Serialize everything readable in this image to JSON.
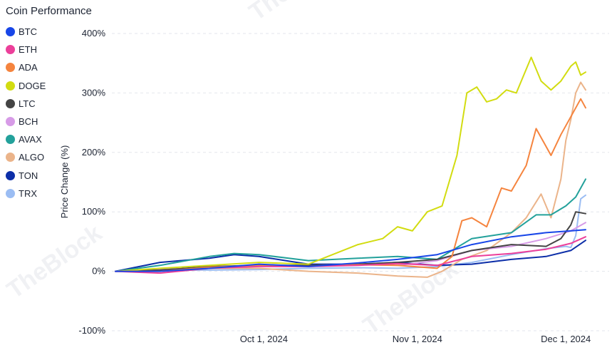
{
  "chart_data": {
    "type": "line",
    "title": "Coin Performance",
    "ylabel": "Price Change (%)",
    "xlabel": "",
    "x_start": "2024-09-01",
    "x_end": "2024-12-05",
    "ylim": [
      -100,
      400
    ],
    "y_ticks": [
      400,
      300,
      200,
      100,
      0,
      -100
    ],
    "y_tick_labels": [
      "400%",
      "300%",
      "200%",
      "100%",
      "0%",
      "-100%"
    ],
    "x_ticks": [
      "2024-10-01",
      "2024-11-01",
      "2024-12-01"
    ],
    "x_tick_labels": [
      "Oct 1, 2024",
      "Nov 1, 2024",
      "Dec 1, 2024"
    ],
    "grid": "horizontal dashed",
    "legend_position": "left",
    "watermark": "TheBlock",
    "series": [
      {
        "name": "BTC",
        "color": "#1846e8",
        "points": [
          [
            "2024-09-01",
            0
          ],
          [
            "2024-09-10",
            0
          ],
          [
            "2024-09-20",
            5
          ],
          [
            "2024-09-30",
            12
          ],
          [
            "2024-10-10",
            8
          ],
          [
            "2024-10-20",
            14
          ],
          [
            "2024-10-28",
            20
          ],
          [
            "2024-11-05",
            28
          ],
          [
            "2024-11-12",
            45
          ],
          [
            "2024-11-20",
            58
          ],
          [
            "2024-11-27",
            65
          ],
          [
            "2024-12-02",
            68
          ],
          [
            "2024-12-05",
            70
          ]
        ]
      },
      {
        "name": "ETH",
        "color": "#ec3f9a",
        "points": [
          [
            "2024-09-01",
            0
          ],
          [
            "2024-09-10",
            -3
          ],
          [
            "2024-09-20",
            5
          ],
          [
            "2024-09-30",
            8
          ],
          [
            "2024-10-10",
            8
          ],
          [
            "2024-10-20",
            10
          ],
          [
            "2024-10-28",
            13
          ],
          [
            "2024-11-05",
            10
          ],
          [
            "2024-11-12",
            25
          ],
          [
            "2024-11-20",
            30
          ],
          [
            "2024-11-27",
            37
          ],
          [
            "2024-12-02",
            47
          ],
          [
            "2024-12-05",
            58
          ]
        ]
      },
      {
        "name": "ADA",
        "color": "#f5843e",
        "points": [
          [
            "2024-09-01",
            0
          ],
          [
            "2024-09-10",
            0
          ],
          [
            "2024-09-20",
            7
          ],
          [
            "2024-09-30",
            10
          ],
          [
            "2024-10-10",
            8
          ],
          [
            "2024-10-20",
            11
          ],
          [
            "2024-10-28",
            10
          ],
          [
            "2024-11-05",
            5
          ],
          [
            "2024-11-08",
            25
          ],
          [
            "2024-11-10",
            85
          ],
          [
            "2024-11-12",
            90
          ],
          [
            "2024-11-15",
            75
          ],
          [
            "2024-11-18",
            140
          ],
          [
            "2024-11-20",
            135
          ],
          [
            "2024-11-23",
            178
          ],
          [
            "2024-11-25",
            240
          ],
          [
            "2024-11-28",
            195
          ],
          [
            "2024-11-30",
            230
          ],
          [
            "2024-12-02",
            260
          ],
          [
            "2024-12-04",
            290
          ],
          [
            "2024-12-05",
            275
          ]
        ]
      },
      {
        "name": "DOGE",
        "color": "#d2dc10",
        "points": [
          [
            "2024-09-01",
            0
          ],
          [
            "2024-09-10",
            5
          ],
          [
            "2024-09-20",
            10
          ],
          [
            "2024-09-30",
            15
          ],
          [
            "2024-10-10",
            12
          ],
          [
            "2024-10-20",
            45
          ],
          [
            "2024-10-25",
            55
          ],
          [
            "2024-10-28",
            75
          ],
          [
            "2024-10-31",
            68
          ],
          [
            "2024-11-03",
            100
          ],
          [
            "2024-11-06",
            110
          ],
          [
            "2024-11-09",
            195
          ],
          [
            "2024-11-11",
            300
          ],
          [
            "2024-11-13",
            310
          ],
          [
            "2024-11-15",
            285
          ],
          [
            "2024-11-17",
            290
          ],
          [
            "2024-11-19",
            305
          ],
          [
            "2024-11-21",
            300
          ],
          [
            "2024-11-24",
            360
          ],
          [
            "2024-11-26",
            320
          ],
          [
            "2024-11-28",
            305
          ],
          [
            "2024-11-30",
            320
          ],
          [
            "2024-12-02",
            345
          ],
          [
            "2024-12-03",
            352
          ],
          [
            "2024-12-04",
            330
          ],
          [
            "2024-12-05",
            335
          ]
        ]
      },
      {
        "name": "LTC",
        "color": "#444444",
        "points": [
          [
            "2024-09-01",
            0
          ],
          [
            "2024-09-10",
            2
          ],
          [
            "2024-09-20",
            8
          ],
          [
            "2024-09-30",
            10
          ],
          [
            "2024-10-10",
            10
          ],
          [
            "2024-10-20",
            12
          ],
          [
            "2024-10-28",
            15
          ],
          [
            "2024-11-05",
            20
          ],
          [
            "2024-11-12",
            35
          ],
          [
            "2024-11-20",
            45
          ],
          [
            "2024-11-27",
            42
          ],
          [
            "2024-11-30",
            55
          ],
          [
            "2024-12-02",
            78
          ],
          [
            "2024-12-03",
            100
          ],
          [
            "2024-12-05",
            97
          ]
        ]
      },
      {
        "name": "BCH",
        "color": "#d79be7",
        "points": [
          [
            "2024-09-01",
            0
          ],
          [
            "2024-09-10",
            3
          ],
          [
            "2024-09-20",
            6
          ],
          [
            "2024-09-30",
            9
          ],
          [
            "2024-10-10",
            10
          ],
          [
            "2024-10-20",
            12
          ],
          [
            "2024-10-28",
            10
          ],
          [
            "2024-11-05",
            18
          ],
          [
            "2024-11-12",
            35
          ],
          [
            "2024-11-20",
            42
          ],
          [
            "2024-11-27",
            55
          ],
          [
            "2024-12-02",
            68
          ],
          [
            "2024-12-05",
            82
          ]
        ]
      },
      {
        "name": "AVAX",
        "color": "#23a19b",
        "points": [
          [
            "2024-09-01",
            0
          ],
          [
            "2024-09-10",
            10
          ],
          [
            "2024-09-20",
            25
          ],
          [
            "2024-09-25",
            30
          ],
          [
            "2024-09-30",
            28
          ],
          [
            "2024-10-10",
            18
          ],
          [
            "2024-10-20",
            22
          ],
          [
            "2024-10-28",
            25
          ],
          [
            "2024-11-05",
            20
          ],
          [
            "2024-11-12",
            55
          ],
          [
            "2024-11-20",
            65
          ],
          [
            "2024-11-25",
            95
          ],
          [
            "2024-11-28",
            95
          ],
          [
            "2024-12-01",
            110
          ],
          [
            "2024-12-03",
            125
          ],
          [
            "2024-12-05",
            155
          ]
        ]
      },
      {
        "name": "ALGO",
        "color": "#ebb48a",
        "points": [
          [
            "2024-09-01",
            0
          ],
          [
            "2024-09-10",
            0
          ],
          [
            "2024-09-20",
            5
          ],
          [
            "2024-09-30",
            5
          ],
          [
            "2024-10-10",
            0
          ],
          [
            "2024-10-20",
            -3
          ],
          [
            "2024-10-28",
            -8
          ],
          [
            "2024-11-03",
            -10
          ],
          [
            "2024-11-06",
            0
          ],
          [
            "2024-11-10",
            20
          ],
          [
            "2024-11-15",
            35
          ],
          [
            "2024-11-20",
            65
          ],
          [
            "2024-11-23",
            90
          ],
          [
            "2024-11-26",
            130
          ],
          [
            "2024-11-28",
            90
          ],
          [
            "2024-11-30",
            155
          ],
          [
            "2024-12-01",
            220
          ],
          [
            "2024-12-02",
            255
          ],
          [
            "2024-12-03",
            300
          ],
          [
            "2024-12-04",
            318
          ],
          [
            "2024-12-05",
            305
          ]
        ]
      },
      {
        "name": "TON",
        "color": "#0c2ea8",
        "points": [
          [
            "2024-09-01",
            0
          ],
          [
            "2024-09-10",
            15
          ],
          [
            "2024-09-20",
            22
          ],
          [
            "2024-09-25",
            28
          ],
          [
            "2024-09-30",
            25
          ],
          [
            "2024-10-10",
            12
          ],
          [
            "2024-10-20",
            12
          ],
          [
            "2024-10-28",
            15
          ],
          [
            "2024-11-05",
            10
          ],
          [
            "2024-11-12",
            12
          ],
          [
            "2024-11-20",
            20
          ],
          [
            "2024-11-27",
            25
          ],
          [
            "2024-12-02",
            35
          ],
          [
            "2024-12-05",
            52
          ]
        ]
      },
      {
        "name": "TRX",
        "color": "#9bbdf3",
        "points": [
          [
            "2024-09-01",
            0
          ],
          [
            "2024-09-10",
            2
          ],
          [
            "2024-09-20",
            2
          ],
          [
            "2024-09-30",
            3
          ],
          [
            "2024-10-10",
            5
          ],
          [
            "2024-10-20",
            6
          ],
          [
            "2024-10-28",
            5
          ],
          [
            "2024-11-05",
            8
          ],
          [
            "2024-11-12",
            15
          ],
          [
            "2024-11-20",
            28
          ],
          [
            "2024-11-27",
            38
          ],
          [
            "2024-12-01",
            42
          ],
          [
            "2024-12-02",
            40
          ],
          [
            "2024-12-03",
            60
          ],
          [
            "2024-12-04",
            122
          ],
          [
            "2024-12-05",
            128
          ]
        ]
      }
    ]
  }
}
